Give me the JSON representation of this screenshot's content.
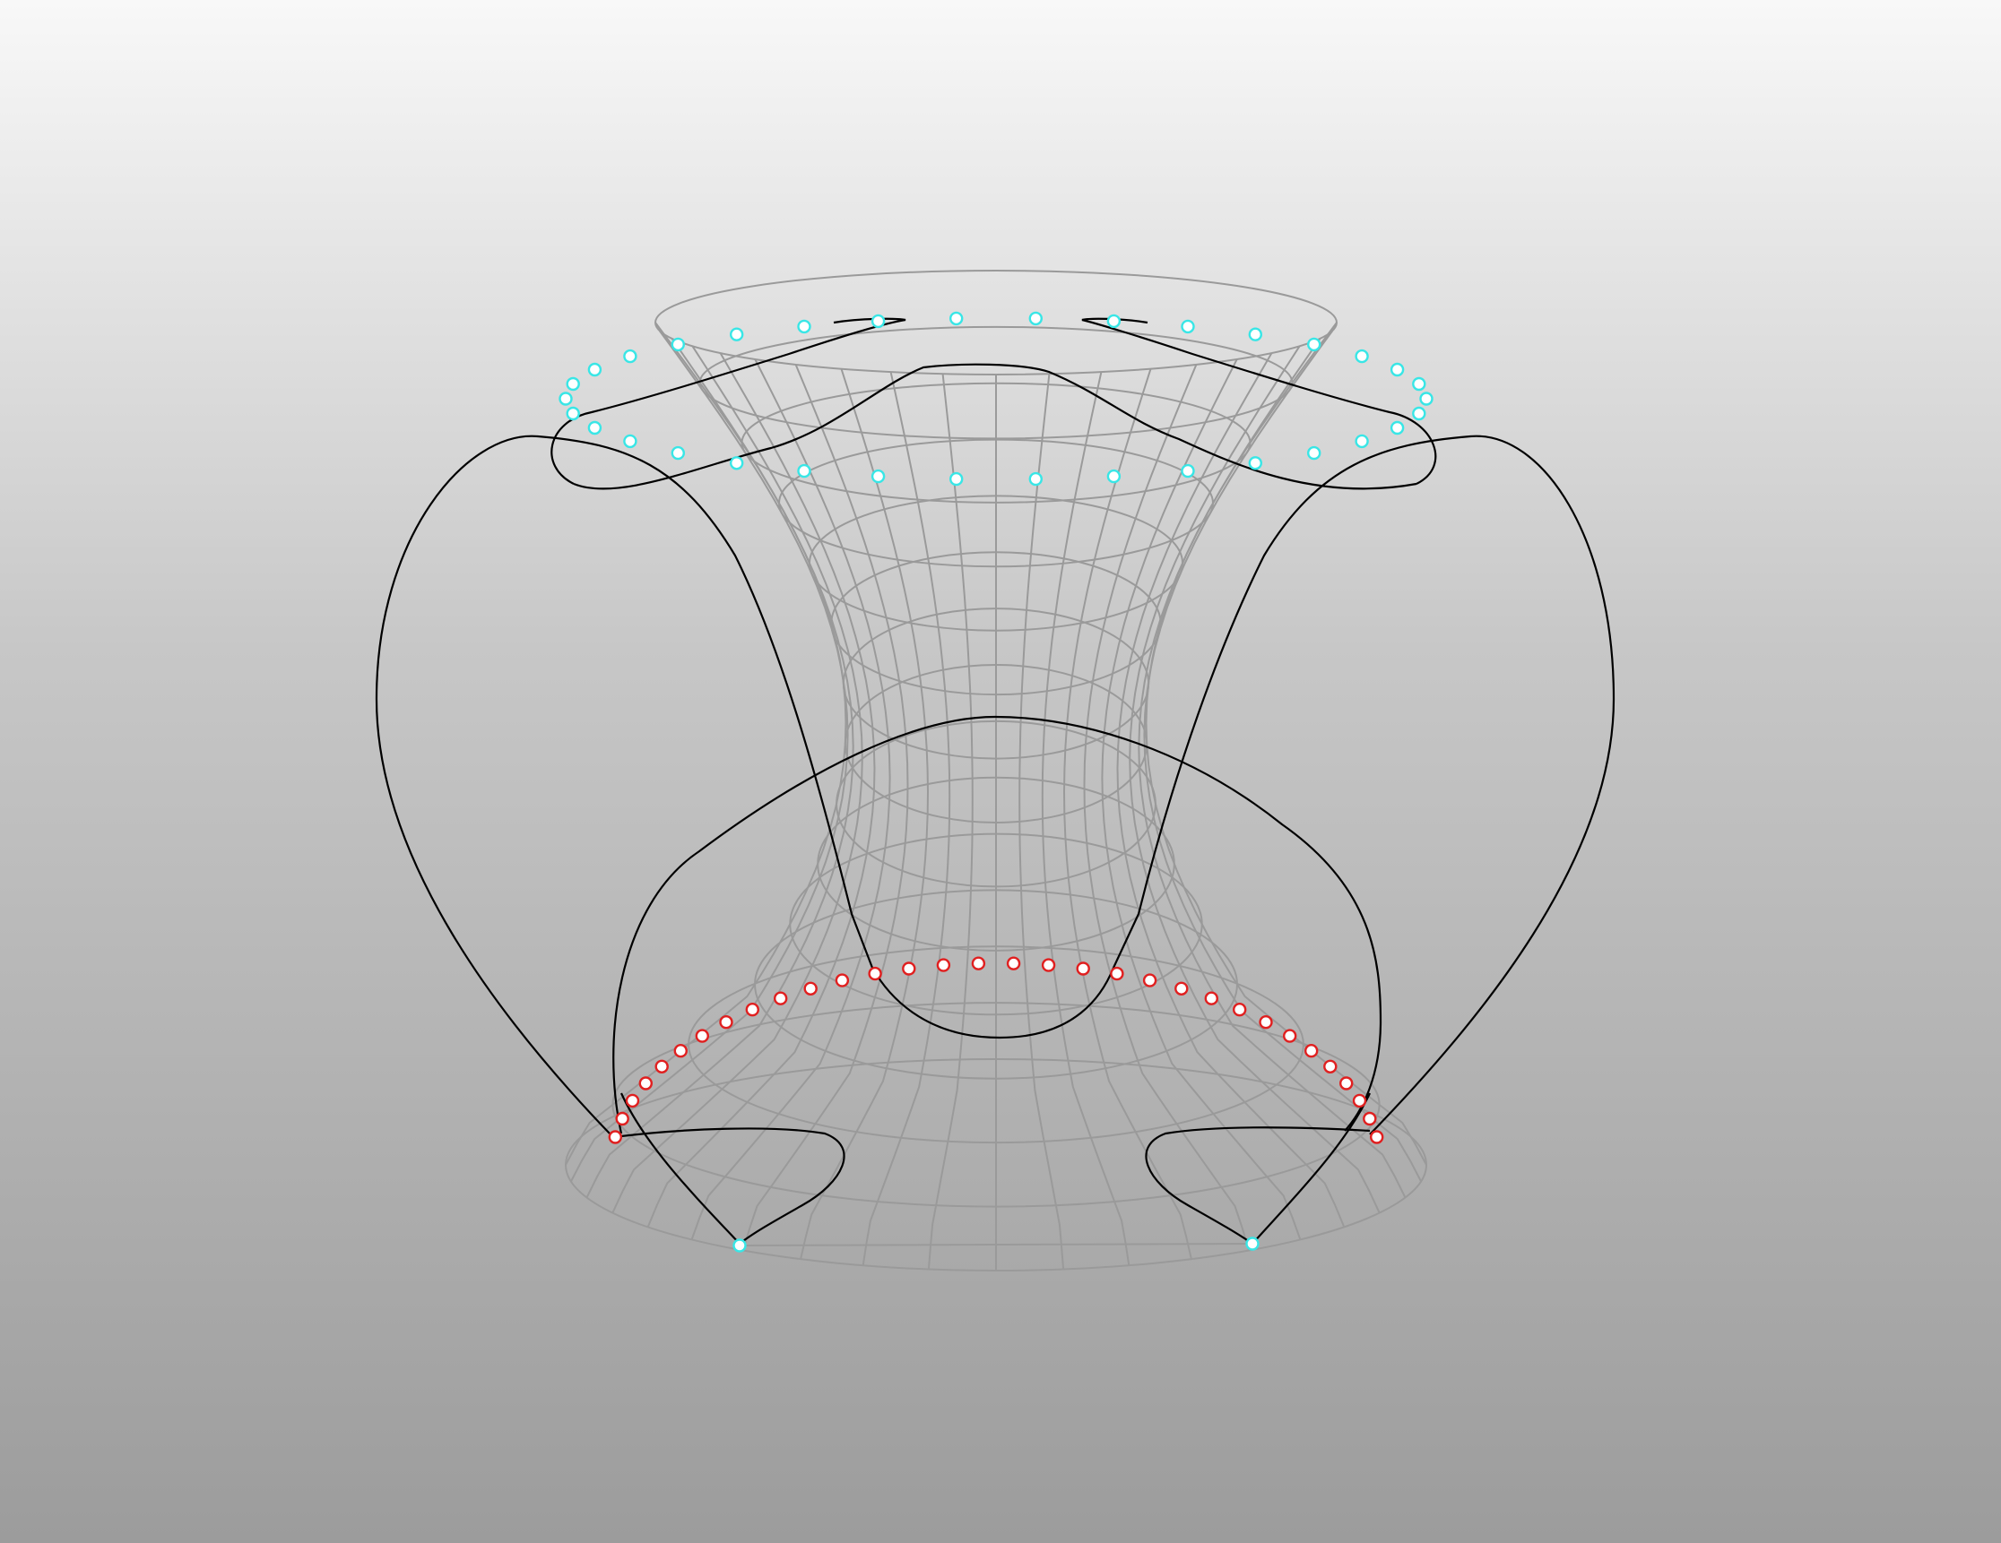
{
  "viewport": {
    "background": {
      "top": "#f8f8f8",
      "bottom": "#9c9c9c"
    },
    "mesh_color": "#9a9a9a",
    "curve_color": "#000000",
    "top_points_color": "#39e6e6",
    "bottom_points_color": "#e02020",
    "point_fill": "#ffffff"
  },
  "mesh": {
    "rings": 15,
    "meridians": 21
  },
  "control_points": {
    "top_rim_count": 34,
    "bottom_rim_count": 32,
    "base_anchor_count": 2
  }
}
